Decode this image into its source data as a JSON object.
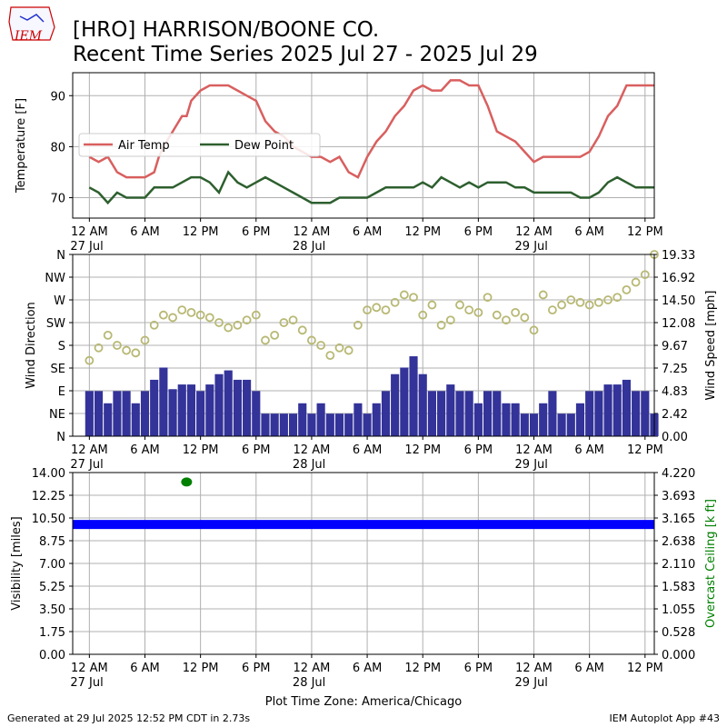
{
  "header": {
    "logo_text": "IEM",
    "title_line1": "[HRO] HARRISON/BOONE CO.",
    "title_line2": "Recent Time Series 2025 Jul 27 - 2025 Jul 29"
  },
  "footer": {
    "generated": "Generated at 29 Jul 2025 12:52 PM CDT in 2.73s",
    "app": "IEM Autoplot App #43"
  },
  "colors": {
    "air_temp": "#d95f5f",
    "dew_point": "#2d5f2e",
    "wind_speed": "#333399",
    "wind_dir": "#b8b874",
    "visibility": "#0000ff",
    "ceiling": "#008000",
    "grid": "#b0b0b0"
  },
  "time_axis": {
    "tick_labels": [
      "12 AM",
      "6 AM",
      "12 PM",
      "6 PM",
      "12 AM",
      "6 AM",
      "12 PM",
      "6 PM",
      "12 AM",
      "6 AM",
      "12 PM"
    ],
    "date_labels": [
      "27 Jul",
      "28 Jul",
      "29 Jul"
    ],
    "xlabel": "Plot Time Zone: America/Chicago"
  },
  "chart_data": [
    {
      "type": "line",
      "x_unit": "hours since 27 Jul 12 AM",
      "xlim": [
        -1.8,
        61
      ],
      "ylim": [
        66,
        94.5
      ],
      "ylabel": "Temperature [F]",
      "yticks": [
        70,
        80,
        90
      ],
      "grid": true,
      "legend": "left",
      "series": [
        {
          "name": "Air Temp",
          "x": [
            0,
            1,
            2,
            3,
            4,
            5,
            6,
            7,
            7.5,
            8,
            9,
            10,
            10.5,
            11,
            12,
            13,
            14,
            15,
            16,
            17,
            18,
            19,
            20,
            21,
            22,
            23,
            24,
            25,
            26,
            27,
            28,
            29,
            30,
            31,
            32,
            33,
            34,
            35,
            36,
            37,
            38,
            39,
            40,
            41,
            42,
            43,
            44,
            45,
            46,
            47,
            48,
            49,
            50,
            51,
            52,
            53,
            54,
            55,
            56,
            57,
            58,
            59,
            60,
            61
          ],
          "values": [
            78,
            77,
            78,
            75,
            74,
            74,
            74,
            75,
            78,
            80,
            83,
            86,
            86,
            89,
            91,
            92,
            92,
            92,
            91,
            90,
            89,
            85,
            83,
            82,
            80,
            79,
            78,
            78,
            77,
            78,
            75,
            74,
            78,
            81,
            83,
            86,
            88,
            91,
            92,
            91,
            91,
            93,
            93,
            92,
            92,
            88,
            83,
            82,
            81,
            79,
            77,
            78,
            78,
            78,
            78,
            78,
            79,
            82,
            86,
            88,
            92,
            92,
            92,
            92
          ]
        },
        {
          "name": "Dew Point",
          "x": [
            0,
            1,
            2,
            3,
            4,
            5,
            6,
            6.5,
            7,
            8,
            9,
            10,
            11,
            12,
            13,
            14,
            15,
            16,
            17,
            18,
            19,
            20,
            21,
            22,
            23,
            24,
            25,
            26,
            27,
            28,
            29,
            30,
            31,
            32,
            33,
            34,
            35,
            36,
            37,
            38,
            39,
            40,
            41,
            42,
            43,
            44,
            45,
            46,
            47,
            48,
            49,
            50,
            51,
            52,
            53,
            54,
            55,
            56,
            57,
            58,
            59,
            60,
            61
          ],
          "values": [
            72,
            71,
            69,
            71,
            70,
            70,
            70,
            71,
            72,
            72,
            72,
            73,
            74,
            74,
            73,
            71,
            75,
            73,
            72,
            73,
            74,
            73,
            72,
            71,
            70,
            69,
            69,
            69,
            70,
            70,
            70,
            70,
            71,
            72,
            72,
            72,
            72,
            73,
            72,
            74,
            73,
            72,
            73,
            72,
            73,
            73,
            73,
            72,
            72,
            71,
            71,
            71,
            71,
            71,
            70,
            70,
            71,
            73,
            74,
            73,
            72,
            72,
            72
          ]
        }
      ]
    },
    {
      "type": "scatter",
      "x_unit": "hours since 27 Jul 12 AM",
      "xlim": [
        -1.8,
        61
      ],
      "ylabel": "Wind Direction",
      "ylim": [
        0,
        360
      ],
      "yticks": [
        "N",
        "NE",
        "E",
        "SE",
        "S",
        "SW",
        "W",
        "NW",
        "N"
      ],
      "grid": true,
      "series": [
        {
          "name": "Wind Direction",
          "x": [
            0,
            1,
            2,
            3,
            4,
            5,
            6,
            7,
            8,
            9,
            10,
            11,
            12,
            13,
            14,
            15,
            16,
            17,
            18,
            19,
            20,
            21,
            22,
            23,
            24,
            25,
            26,
            27,
            28,
            29,
            30,
            31,
            32,
            33,
            34,
            35,
            36,
            37,
            38,
            39,
            40,
            41,
            42,
            43,
            44,
            45,
            46,
            47,
            48,
            49,
            50,
            51,
            52,
            53,
            54,
            55,
            56,
            57,
            58,
            59,
            60,
            61
          ],
          "values": [
            150,
            175,
            200,
            180,
            170,
            165,
            190,
            220,
            240,
            235,
            250,
            245,
            240,
            235,
            225,
            215,
            220,
            230,
            240,
            190,
            200,
            225,
            230,
            210,
            190,
            180,
            160,
            175,
            170,
            220,
            250,
            255,
            250,
            265,
            280,
            275,
            240,
            260,
            220,
            230,
            260,
            250,
            245,
            275,
            240,
            230,
            245,
            235,
            210,
            280,
            250,
            260,
            270,
            265,
            260,
            265,
            270,
            275,
            290,
            305,
            320,
            360
          ]
        },
        {
          "name": "Wind Speed",
          "x": [
            0,
            1,
            2,
            3,
            4,
            5,
            6,
            7,
            8,
            9,
            10,
            11,
            12,
            13,
            14,
            15,
            16,
            17,
            18,
            19,
            20,
            21,
            22,
            23,
            24,
            25,
            26,
            27,
            28,
            29,
            30,
            31,
            32,
            33,
            34,
            35,
            36,
            37,
            38,
            39,
            40,
            41,
            42,
            43,
            44,
            45,
            46,
            47,
            48,
            49,
            50,
            51,
            52,
            53,
            54,
            55,
            56,
            57,
            58,
            59,
            60,
            61
          ],
          "values": [
            4.8,
            4.8,
            3.5,
            4.8,
            4.8,
            3.5,
            4.8,
            6,
            7.3,
            5,
            5.5,
            5.5,
            4.8,
            5.5,
            6.6,
            7,
            6,
            6,
            4.8,
            2.4,
            2.4,
            2.4,
            2.4,
            3.5,
            2.4,
            3.5,
            2.4,
            2.4,
            2.4,
            3.5,
            2.4,
            3.5,
            4.8,
            6.6,
            7.3,
            8.5,
            6.6,
            4.8,
            4.8,
            5.5,
            4.8,
            4.8,
            3.5,
            4.8,
            4.8,
            3.5,
            3.5,
            2.4,
            2.4,
            3.5,
            4.8,
            2.4,
            2.4,
            3.5,
            4.8,
            4.8,
            5.5,
            5.5,
            6,
            4.8,
            4.8,
            2.4
          ],
          "y2label": "Wind Speed [mph]",
          "y2lim": [
            0,
            19.33
          ],
          "y2ticks": [
            "0.00",
            "2.42",
            "4.83",
            "7.25",
            "9.67",
            "12.08",
            "14.50",
            "16.92",
            "19.33"
          ]
        }
      ]
    },
    {
      "type": "scatter",
      "x_unit": "hours since 27 Jul 12 AM",
      "xlim": [
        -1.8,
        61
      ],
      "ylabel": "Visibility [miles]",
      "ylim": [
        0,
        14
      ],
      "yticks": [
        "0.00",
        "1.75",
        "3.50",
        "5.25",
        "7.00",
        "8.75",
        "10.50",
        "12.25",
        "14.00"
      ],
      "grid": true,
      "series": [
        {
          "name": "Visibility",
          "x_range": [
            -1.8,
            61
          ],
          "value": 10
        },
        {
          "name": "Overcast Ceiling",
          "x": [
            10.5
          ],
          "values": [
            4.0
          ]
        }
      ],
      "y2label": "Overcast Ceiling [k ft]",
      "y2lim": [
        0,
        4.22
      ],
      "y2ticks": [
        "0.000",
        "0.528",
        "1.055",
        "1.583",
        "2.110",
        "2.638",
        "3.165",
        "3.693",
        "4.220"
      ]
    }
  ]
}
